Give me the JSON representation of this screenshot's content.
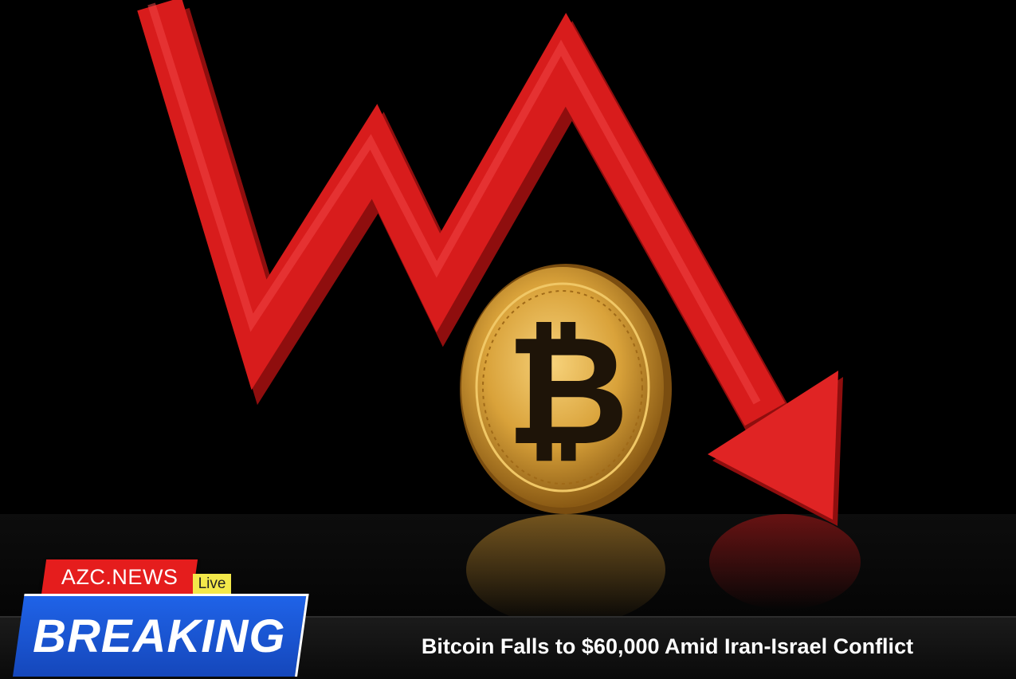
{
  "brand": {
    "name": "AZC.NEWS",
    "live_label": "Live"
  },
  "banner": {
    "breaking_label": "BREAKING",
    "headline": "Bitcoin Falls to $60,000 Amid Iran-Israel Conflict"
  },
  "colors": {
    "arrow_red": "#d81c1c",
    "brand_red": "#e51d1d",
    "breaking_blue": "#1d5fe0",
    "live_yellow": "#f3e84a",
    "coin_gold": "#d9a23a"
  },
  "icons": {
    "coin": "bitcoin-coin-icon",
    "arrow": "downtrend-arrow-icon"
  }
}
